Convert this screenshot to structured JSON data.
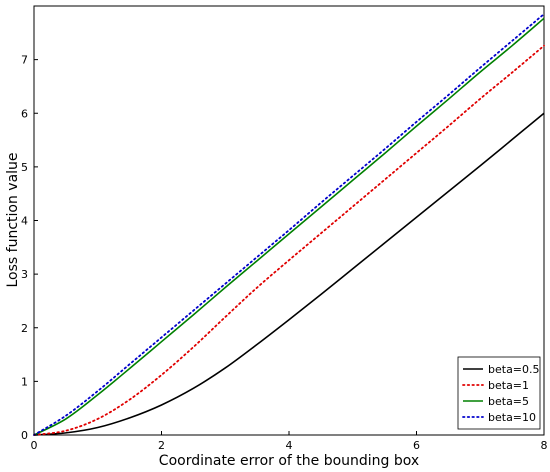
{
  "chart_data": {
    "type": "line",
    "title": "",
    "xlabel": "Coordinate error of the bounding box",
    "ylabel": "Loss function value",
    "xlim": [
      0,
      8
    ],
    "ylim": [
      0,
      8
    ],
    "xticks": [
      "0",
      "2",
      "4",
      "6",
      "8"
    ],
    "yticks": [
      "0",
      "1",
      "2",
      "3",
      "4",
      "5",
      "6",
      "7"
    ],
    "grid": false,
    "legend_position": "bottom-right",
    "x": [
      0,
      0.5,
      1,
      1.5,
      2,
      2.5,
      3,
      3.5,
      4,
      4.5,
      5,
      5.5,
      6,
      6.5,
      7,
      7.5,
      8
    ],
    "series": [
      {
        "name": "beta=0.5",
        "color": "#000000",
        "style": "solid",
        "values": [
          0,
          0.04,
          0.14,
          0.32,
          0.56,
          0.87,
          1.25,
          1.69,
          2.15,
          2.62,
          3.1,
          3.58,
          4.06,
          4.54,
          5.02,
          5.51,
          6.0
        ]
      },
      {
        "name": "beta=1",
        "color": "#e00000",
        "style": "dotted",
        "values": [
          0,
          0.08,
          0.3,
          0.66,
          1.12,
          1.64,
          2.2,
          2.75,
          3.26,
          3.76,
          4.26,
          4.76,
          5.26,
          5.76,
          6.27,
          6.76,
          7.26
        ]
      },
      {
        "name": "beta=5",
        "color": "#008000",
        "style": "solid",
        "values": [
          0,
          0.3,
          0.75,
          1.24,
          1.74,
          2.24,
          2.75,
          3.25,
          3.75,
          4.25,
          4.75,
          5.25,
          5.76,
          6.26,
          6.77,
          7.26,
          7.77
        ]
      },
      {
        "name": "beta=10",
        "color": "#0000cc",
        "style": "dotted",
        "values": [
          0,
          0.36,
          0.82,
          1.32,
          1.82,
          2.32,
          2.82,
          3.32,
          3.82,
          4.33,
          4.83,
          5.33,
          5.84,
          6.34,
          6.85,
          7.35,
          7.85
        ]
      }
    ]
  }
}
